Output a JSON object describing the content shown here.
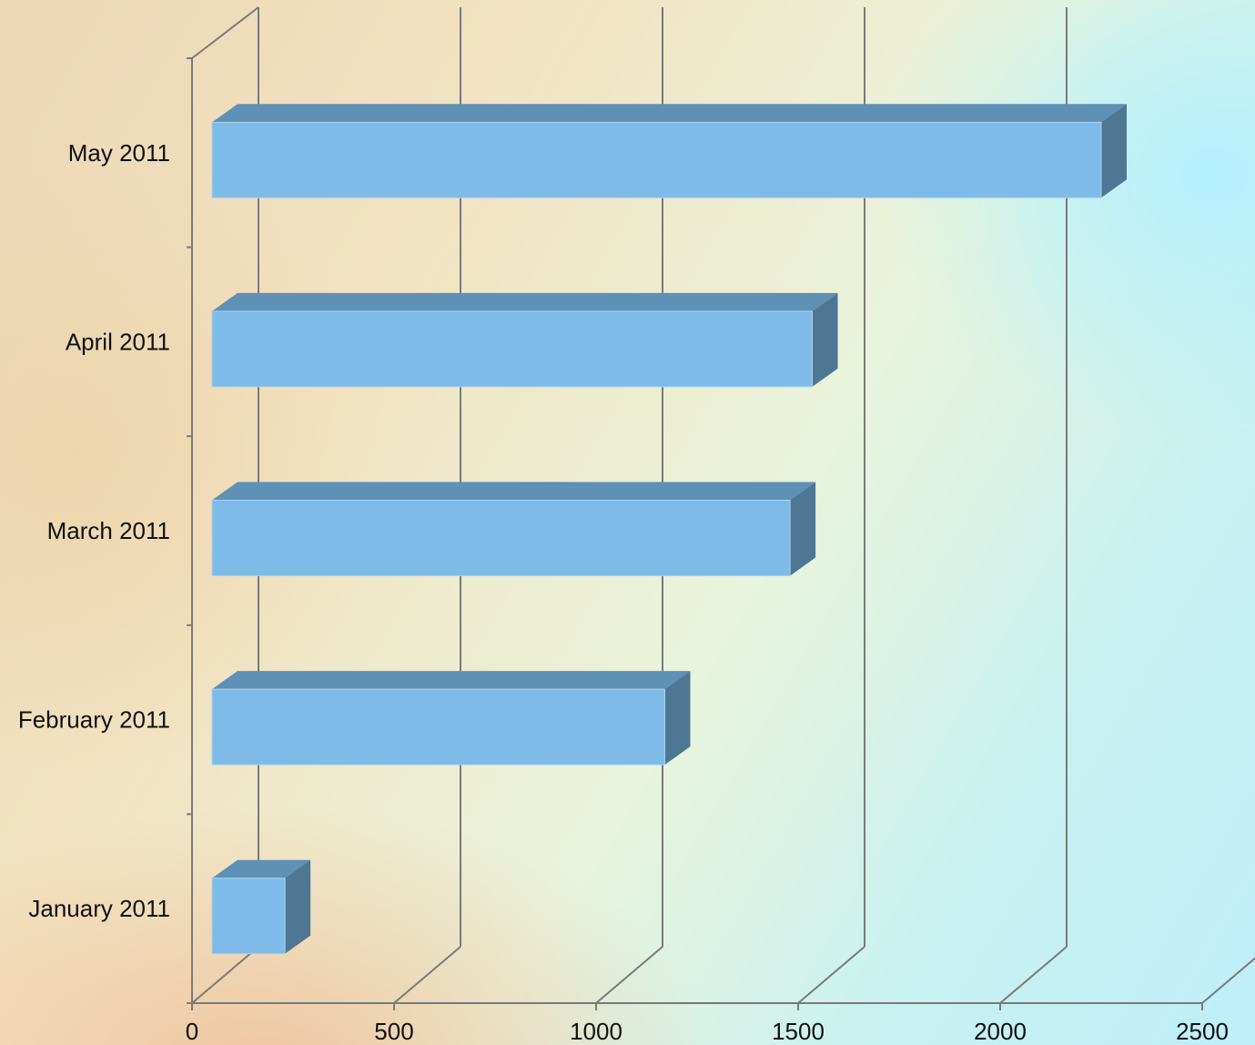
{
  "chart_data": {
    "type": "bar",
    "orientation": "horizontal",
    "style": "3d",
    "categories": [
      "January 2011",
      "February 2011",
      "March 2011",
      "April 2011",
      "May 2011"
    ],
    "values": [
      230,
      1170,
      1480,
      1535,
      2250
    ],
    "xlim": [
      0,
      2500
    ],
    "x_ticks": [
      "0",
      "500",
      "1000",
      "1500",
      "2000",
      "2500"
    ],
    "grid": true,
    "legend": "none",
    "colors": {
      "bar_front": "#7fbbe8",
      "bar_top": "#5f90b5",
      "bar_side": "#4e7794",
      "grid": "#7a7a7a"
    }
  }
}
